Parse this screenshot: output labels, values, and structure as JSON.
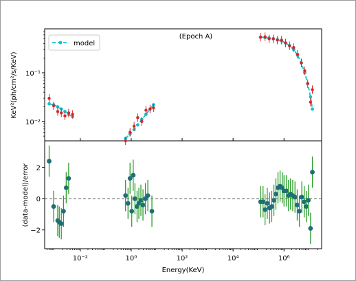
{
  "colors": {
    "model": "#17becf",
    "data_top": "#d62728",
    "residual_point": "#1f6f78",
    "residual_err": "#2ca02c",
    "zero_line": "#555555"
  },
  "chart_data": [
    {
      "type": "line",
      "panel": "top",
      "title": "(Epoch A)",
      "xlabel": "",
      "ylabel": "KeV²(ph/cm²/s/KeV)",
      "xscale": "log",
      "yscale": "log",
      "xlim": [
        0.0004,
        30000000
      ],
      "ylim": [
        0.004,
        0.8
      ],
      "yticks": [
        {
          "value": 0.01,
          "label": "10⁻²"
        },
        {
          "value": 0.1,
          "label": "10⁻¹"
        }
      ],
      "legend": {
        "position": "top-left",
        "entries": [
          "model"
        ]
      },
      "series": [
        {
          "name": "model",
          "style": "dashed-line-with-dots",
          "segments": [
            {
              "x": [
                0.0006,
                0.0009,
                0.0013,
                0.0018,
                0.0025,
                0.0035,
                0.005
              ],
              "y": [
                0.023,
                0.022,
                0.02,
                0.018,
                0.016,
                0.014,
                0.0125
              ]
            },
            {
              "x": [
                0.6,
                0.9,
                1.3,
                1.8,
                2.6,
                3.8,
                5.5,
                7.5
              ],
              "y": [
                0.0045,
                0.0055,
                0.0068,
                0.0085,
                0.011,
                0.014,
                0.018,
                0.022
              ]
            },
            {
              "x": [
                120000,
                180000,
                260000,
                380000,
                550000,
                800000,
                1150000,
                1650000,
                2400000,
                3400000,
                4800000,
                6500000,
                8500000,
                11000000,
                13000000
              ],
              "y": [
                0.54,
                0.53,
                0.52,
                0.5,
                0.48,
                0.45,
                0.41,
                0.36,
                0.3,
                0.23,
                0.16,
                0.1,
                0.06,
                0.032,
                0.018
              ]
            }
          ]
        },
        {
          "name": "",
          "style": "points-with-errorbars",
          "x": [
            0.0006,
            0.0009,
            0.0013,
            0.0018,
            0.0025,
            0.0035,
            0.005,
            0.6,
            0.9,
            1.3,
            1.8,
            2.6,
            3.8,
            5.5,
            7.5,
            120000,
            180000,
            260000,
            380000,
            550000,
            800000,
            1150000,
            1650000,
            2400000,
            3400000,
            4800000,
            6500000,
            8500000,
            11000000,
            13000000
          ],
          "y": [
            0.03,
            0.021,
            0.016,
            0.015,
            0.013,
            0.015,
            0.014,
            0.004,
            0.006,
            0.008,
            0.012,
            0.01,
            0.017,
            0.018,
            0.019,
            0.54,
            0.55,
            0.5,
            0.5,
            0.47,
            0.47,
            0.41,
            0.36,
            0.33,
            0.24,
            0.16,
            0.11,
            0.06,
            0.025,
            0.045
          ]
        }
      ]
    },
    {
      "type": "scatter",
      "panel": "bottom",
      "xlabel": "Energy(KeV)",
      "ylabel": "(data-model)/error",
      "xscale": "log",
      "xlim": [
        0.0004,
        30000000
      ],
      "ylim": [
        -3.2,
        3.7
      ],
      "xticks": [
        {
          "value": 0.01,
          "label": "10⁻²"
        },
        {
          "value": 1,
          "label": "10⁰"
        },
        {
          "value": 100,
          "label": "10²"
        },
        {
          "value": 10000,
          "label": "10⁴"
        },
        {
          "value": 1000000,
          "label": "10⁶"
        }
      ],
      "yticks": [
        {
          "value": -2,
          "label": "−2"
        },
        {
          "value": 0,
          "label": "0"
        },
        {
          "value": 2,
          "label": "2"
        }
      ],
      "zero_line": 0,
      "series": [
        {
          "name": "",
          "x": [
            0.0006,
            0.0009,
            0.0013,
            0.0015,
            0.0018,
            0.0022,
            0.0028,
            0.0035,
            0.6,
            0.75,
            0.9,
            1.05,
            1.2,
            1.4,
            1.7,
            2.0,
            2.4,
            2.9,
            3.6,
            4.5,
            6.5,
            120000,
            150000,
            180000,
            220000,
            270000,
            330000,
            400000,
            480000,
            580000,
            700000,
            850000,
            1000000,
            1250000,
            1500000,
            1800000,
            2200000,
            2700000,
            3300000,
            4000000,
            5000000,
            6200000,
            7500000,
            9000000,
            11000000,
            13000000
          ],
          "y": [
            2.4,
            -0.5,
            -1.4,
            -1.5,
            -1.6,
            -0.8,
            0.7,
            1.3,
            0.2,
            -0.3,
            1.3,
            -0.8,
            1.5,
            0.0,
            -0.5,
            -0.3,
            -0.1,
            -0.4,
            0.0,
            0.2,
            -0.8,
            -0.2,
            -0.2,
            -0.7,
            -0.3,
            -0.6,
            -0.5,
            -0.1,
            0.3,
            0.7,
            0.8,
            0.7,
            0.5,
            0.5,
            0.2,
            0.3,
            0.2,
            0.1,
            -0.4,
            -0.8,
            0.1,
            -0.2,
            -0.5,
            -0.1,
            -1.9,
            1.7
          ],
          "yerr": [
            1.0,
            1.0,
            1.0,
            1.0,
            1.0,
            1.0,
            1.0,
            1.0,
            1.0,
            1.0,
            1.0,
            1.0,
            1.0,
            1.0,
            1.0,
            1.0,
            1.0,
            1.0,
            1.0,
            1.0,
            1.0,
            1.0,
            1.0,
            1.0,
            1.0,
            1.0,
            1.0,
            1.0,
            1.0,
            1.0,
            1.0,
            1.0,
            1.0,
            1.0,
            1.0,
            1.0,
            1.0,
            1.0,
            1.0,
            1.0,
            1.0,
            1.0,
            1.0,
            1.0,
            1.0,
            1.0
          ]
        }
      ]
    }
  ]
}
